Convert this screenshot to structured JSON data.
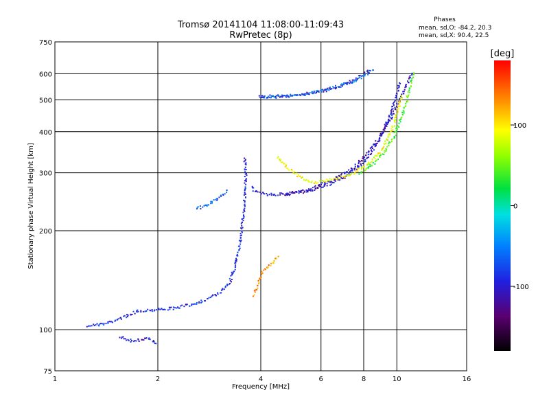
{
  "chart_data": {
    "type": "scatter",
    "title": "Tromsø 20141104 11:08:00-11:09:43",
    "subtitle": "RwPretec (8p)",
    "xlabel": "Frequency [MHz]",
    "ylabel": "Stationary phase Virtual Height [km]",
    "x_scale": "log",
    "y_scale": "log",
    "xlim": [
      1,
      16
    ],
    "ylim": [
      75,
      750
    ],
    "grid": true,
    "x_ticks": [
      "1",
      "2",
      "4",
      "6",
      "8",
      "10",
      "16"
    ],
    "y_ticks": [
      "75",
      "100",
      "200",
      "300",
      "400",
      "500",
      "600",
      "750"
    ],
    "x_tick_values": [
      1,
      2,
      4,
      6,
      8,
      10,
      16
    ],
    "y_tick_values": [
      75,
      100,
      200,
      300,
      400,
      500,
      600,
      750
    ],
    "phases_box": {
      "heading": "Phases",
      "line_o": "mean, sd,O: -84.2, 20.3",
      "line_x": "mean, sd,X:  90.4, 22.5"
    },
    "colorbar": {
      "label": "[deg]",
      "ticks": [
        "100",
        "0",
        "-100"
      ],
      "tick_values": [
        100,
        0,
        -100
      ],
      "range": [
        -180,
        180
      ]
    },
    "traces": [
      {
        "phase": -90,
        "points": [
          [
            1.25,
            103
          ],
          [
            1.4,
            104
          ],
          [
            1.55,
            108
          ],
          [
            1.75,
            114
          ],
          [
            1.95,
            115
          ],
          [
            2.2,
            116
          ],
          [
            2.5,
            119
          ],
          [
            2.8,
            124
          ],
          [
            3.05,
            130
          ],
          [
            3.25,
            140
          ],
          [
            3.38,
            158
          ],
          [
            3.48,
            185
          ],
          [
            3.56,
            225
          ],
          [
            3.6,
            262
          ],
          [
            3.62,
            300
          ],
          [
            3.58,
            335
          ]
        ]
      },
      {
        "phase": -100,
        "points": [
          [
            3.78,
            272
          ],
          [
            3.85,
            262
          ],
          [
            4.2,
            258
          ],
          [
            4.8,
            258
          ],
          [
            5.5,
            264
          ],
          [
            6.2,
            274
          ],
          [
            7.0,
            290
          ],
          [
            7.8,
            315
          ],
          [
            8.4,
            345
          ],
          [
            8.9,
            380
          ],
          [
            9.3,
            420
          ],
          [
            9.7,
            470
          ],
          [
            10.0,
            520
          ],
          [
            10.2,
            570
          ]
        ]
      },
      {
        "phase": -110,
        "points": [
          [
            4.7,
            258
          ],
          [
            5.5,
            266
          ],
          [
            6.5,
            285
          ],
          [
            7.5,
            312
          ],
          [
            8.2,
            342
          ],
          [
            8.8,
            378
          ],
          [
            9.5,
            430
          ],
          [
            10.2,
            500
          ],
          [
            10.7,
            560
          ],
          [
            11.1,
            605
          ]
        ]
      },
      {
        "phase": 90,
        "points": [
          [
            4.45,
            335
          ],
          [
            4.8,
            310
          ],
          [
            5.2,
            290
          ],
          [
            5.7,
            280
          ],
          [
            6.5,
            286
          ],
          [
            7.4,
            298
          ],
          [
            8.2,
            318
          ],
          [
            8.9,
            345
          ],
          [
            9.4,
            380
          ],
          [
            9.8,
            420
          ],
          [
            10.1,
            470
          ],
          [
            10.35,
            520
          ]
        ]
      },
      {
        "phase": 40,
        "points": [
          [
            7.8,
            298
          ],
          [
            8.5,
            318
          ],
          [
            9.2,
            345
          ],
          [
            9.8,
            385
          ],
          [
            10.3,
            440
          ],
          [
            10.7,
            500
          ],
          [
            11.0,
            560
          ],
          [
            11.2,
            610
          ]
        ]
      },
      {
        "phase": -110,
        "points": [
          [
            3.95,
            512
          ],
          [
            4.5,
            512
          ],
          [
            5.2,
            517
          ],
          [
            6.0,
            530
          ],
          [
            6.8,
            550
          ],
          [
            7.4,
            570
          ],
          [
            7.9,
            595
          ],
          [
            8.3,
            615
          ]
        ]
      },
      {
        "phase": -60,
        "points": [
          [
            4.0,
            508
          ],
          [
            4.8,
            513
          ],
          [
            5.6,
            523
          ],
          [
            6.5,
            543
          ],
          [
            7.3,
            563
          ],
          [
            8.0,
            590
          ],
          [
            8.6,
            620
          ]
        ]
      },
      {
        "phase": 130,
        "points": [
          [
            3.82,
            127
          ],
          [
            3.95,
            140
          ],
          [
            4.05,
            150
          ],
          [
            4.2,
            156
          ],
          [
            4.38,
            160
          ],
          [
            4.5,
            168
          ]
        ]
      },
      {
        "phase": -65,
        "points": [
          [
            2.6,
            233
          ],
          [
            2.8,
            240
          ],
          [
            3.0,
            250
          ],
          [
            3.2,
            265
          ]
        ]
      },
      {
        "phase": -100,
        "points": [
          [
            1.55,
            95
          ],
          [
            1.7,
            92
          ],
          [
            1.85,
            94
          ],
          [
            2.0,
            91
          ]
        ]
      }
    ]
  }
}
